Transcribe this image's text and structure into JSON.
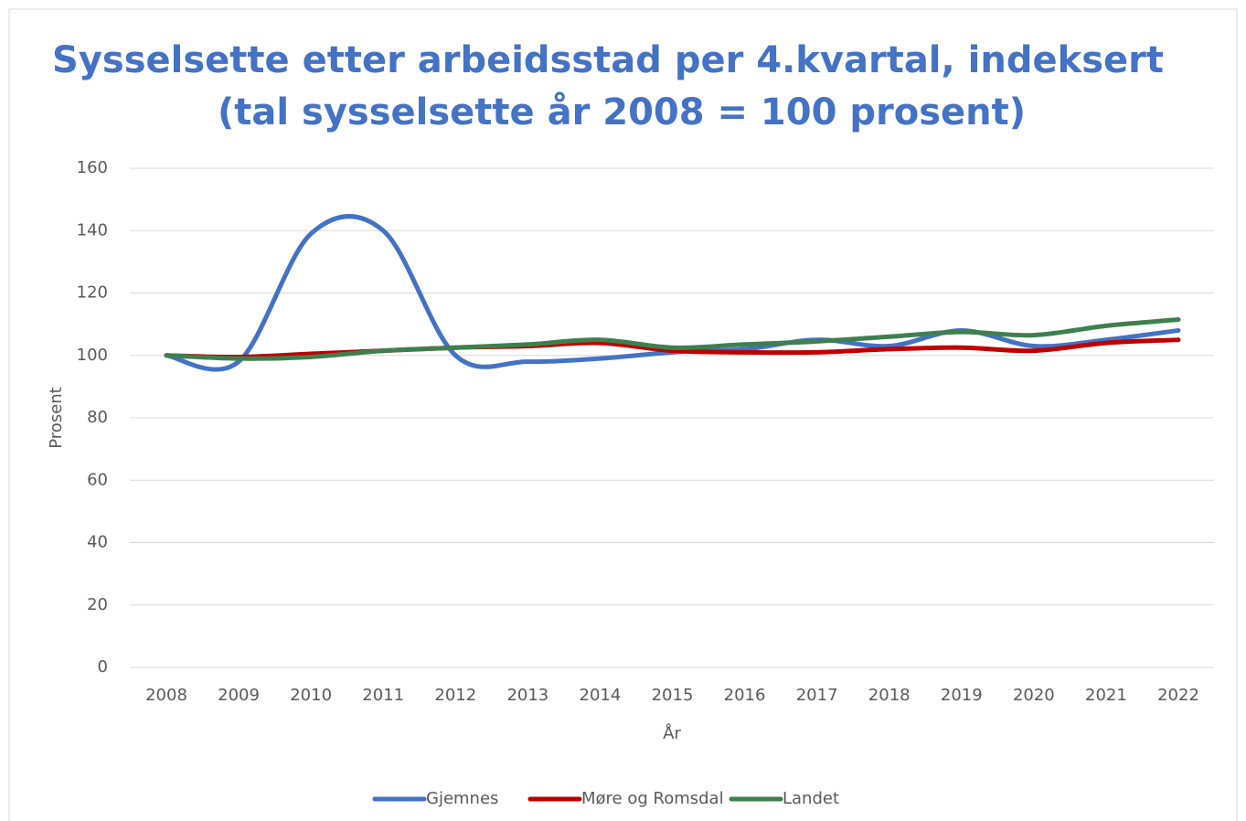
{
  "chart_data": {
    "type": "line",
    "title": [
      "Sysselsette etter arbeidsstad per 4.kvartal, indeksert",
      "(tal sysselsette år 2008 = 100 prosent)"
    ],
    "x_label": "År",
    "y_label": "Prosent",
    "categories": [
      "2008",
      "2009",
      "2010",
      "2011",
      "2012",
      "2013",
      "2014",
      "2015",
      "2016",
      "2017",
      "2018",
      "2019",
      "2020",
      "2021",
      "2022"
    ],
    "series": [
      {
        "name": "Gjemnes",
        "color": "#4472c4",
        "values": [
          100,
          98,
          139,
          140,
          100,
          98,
          99,
          101,
          102,
          105,
          103,
          108,
          103,
          105,
          108
        ]
      },
      {
        "name": "Møre og Romsdal",
        "color": "#c00000",
        "values": [
          100,
          99.5,
          100.5,
          101.5,
          102.5,
          103,
          104,
          101.5,
          101,
          101,
          102,
          102.5,
          101.5,
          104,
          105
        ]
      },
      {
        "name": "Landet",
        "color": "#3f7f4f",
        "values": [
          100,
          99,
          99.5,
          101.5,
          102.5,
          103.5,
          105,
          102.5,
          103.5,
          104.5,
          106,
          107.5,
          106.5,
          109.5,
          111.5
        ]
      }
    ],
    "ylim": [
      0,
      160
    ],
    "yticks": [
      0,
      20,
      40,
      60,
      80,
      100,
      120,
      140,
      160
    ],
    "grid": true,
    "smooth": true,
    "legend": "bottom"
  }
}
